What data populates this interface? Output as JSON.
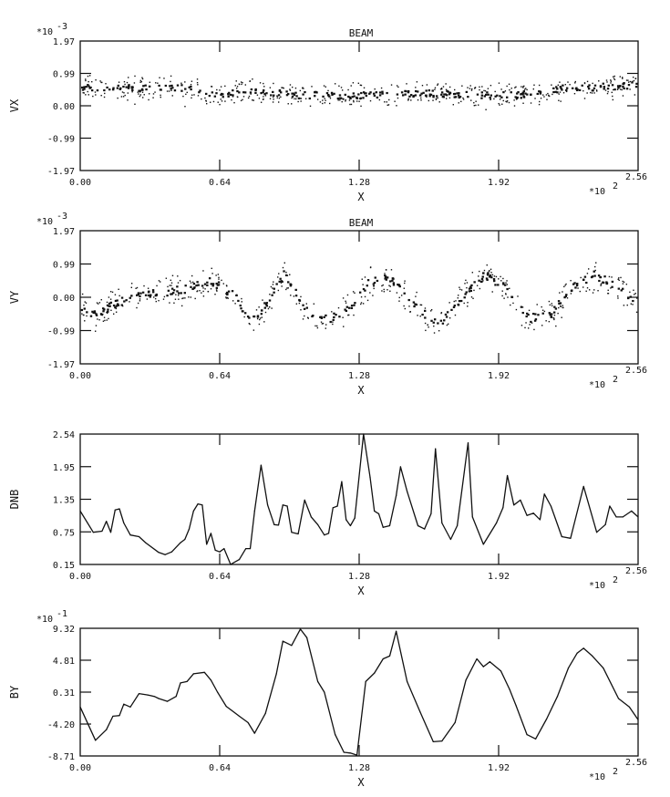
{
  "chart_data": [
    {
      "type": "scatter",
      "title": "BEAM",
      "xlabel": "X",
      "ylabel": "VX",
      "y_scale_label": "*10",
      "y_scale_exp": "-3",
      "x_scale_label": "*10",
      "x_scale_exp": "2",
      "xlim": [
        0,
        2.56
      ],
      "ylim": [
        -1.97,
        1.97
      ],
      "xticks": [
        "0.00",
        "0.64",
        "1.28",
        "1.92",
        "2.56"
      ],
      "yticks": [
        "1.97",
        "0.99",
        "0.00",
        "-0.99",
        "-1.97"
      ],
      "trend": {
        "x": [
          0,
          0.3,
          0.45,
          0.6,
          0.8,
          1.0,
          1.3,
          1.6,
          1.8,
          2.0,
          2.2,
          2.56
        ],
        "y": [
          0.6,
          0.55,
          0.6,
          0.35,
          0.5,
          0.35,
          0.35,
          0.4,
          0.35,
          0.35,
          0.55,
          0.65
        ]
      },
      "spread": 0.25,
      "n_points": 700
    },
    {
      "type": "scatter",
      "title": "BEAM",
      "xlabel": "X",
      "ylabel": "VY",
      "y_scale_label": "*10",
      "y_scale_exp": "-3",
      "x_scale_label": "*10",
      "x_scale_exp": "2",
      "xlim": [
        0,
        2.56
      ],
      "ylim": [
        -1.97,
        1.97
      ],
      "xticks": [
        "0.00",
        "0.64",
        "1.28",
        "1.92",
        "2.56"
      ],
      "yticks": [
        "1.97",
        "0.99",
        "0.00",
        "-0.99",
        "-1.97"
      ],
      "trend": {
        "x": [
          0,
          0.05,
          0.15,
          0.25,
          0.4,
          0.5,
          0.6,
          0.7,
          0.78,
          0.85,
          0.93,
          0.98,
          1.05,
          1.15,
          1.25,
          1.32,
          1.42,
          1.5,
          1.58,
          1.65,
          1.75,
          1.85,
          1.95,
          2.05,
          2.15,
          2.25,
          2.35,
          2.45,
          2.56
        ],
        "y": [
          -0.3,
          -0.5,
          -0.2,
          0.1,
          0.2,
          0.3,
          0.5,
          0.1,
          -0.7,
          -0.2,
          0.7,
          0.2,
          -0.5,
          -0.6,
          -0.2,
          0.5,
          0.6,
          0.0,
          -0.5,
          -0.7,
          0.0,
          0.7,
          0.3,
          -0.6,
          -0.5,
          0.3,
          0.7,
          0.4,
          -0.2
        ]
      },
      "spread": 0.3,
      "n_points": 700
    },
    {
      "type": "line",
      "title": "",
      "xlabel": "X",
      "ylabel": "DNB",
      "x_scale_label": "*10",
      "x_scale_exp": "2",
      "xlim": [
        0,
        2.56
      ],
      "ylim": [
        0.15,
        2.54
      ],
      "xticks": [
        "0.00",
        "0.64",
        "1.28",
        "1.92",
        "2.56"
      ],
      "yticks": [
        "2.54",
        "1.95",
        "1.35",
        "0.75",
        "0.15"
      ],
      "x": [
        0,
        0.06,
        0.1,
        0.12,
        0.14,
        0.16,
        0.18,
        0.2,
        0.23,
        0.27,
        0.3,
        0.36,
        0.39,
        0.42,
        0.46,
        0.48,
        0.5,
        0.52,
        0.54,
        0.56,
        0.58,
        0.6,
        0.62,
        0.64,
        0.66,
        0.69,
        0.73,
        0.76,
        0.78,
        0.8,
        0.83,
        0.86,
        0.89,
        0.91,
        0.93,
        0.95,
        0.97,
        1.0,
        1.03,
        1.06,
        1.09,
        1.12,
        1.14,
        1.16,
        1.18,
        1.2,
        1.22,
        1.24,
        1.26,
        1.3,
        1.33,
        1.35,
        1.37,
        1.39,
        1.42,
        1.45,
        1.47,
        1.5,
        1.55,
        1.58,
        1.61,
        1.63,
        1.66,
        1.7,
        1.73,
        1.78,
        1.8,
        1.85,
        1.91,
        1.94,
        1.96,
        1.99,
        2.02,
        2.05,
        2.08,
        2.11,
        2.13,
        2.16,
        2.21,
        2.25,
        2.31,
        2.37,
        2.41,
        2.43,
        2.46,
        2.49,
        2.53,
        2.56
      ],
      "y": [
        1.13,
        0.74,
        0.76,
        0.94,
        0.74,
        1.15,
        1.17,
        0.91,
        0.69,
        0.66,
        0.55,
        0.37,
        0.33,
        0.38,
        0.55,
        0.61,
        0.8,
        1.13,
        1.26,
        1.24,
        0.52,
        0.72,
        0.41,
        0.38,
        0.44,
        0.15,
        0.24,
        0.44,
        0.44,
        1.13,
        1.97,
        1.24,
        0.88,
        0.87,
        1.24,
        1.22,
        0.74,
        0.71,
        1.33,
        1.02,
        0.88,
        0.69,
        0.72,
        1.19,
        1.22,
        1.67,
        0.97,
        0.86,
        1.0,
        2.54,
        1.75,
        1.13,
        1.08,
        0.83,
        0.86,
        1.41,
        1.94,
        1.49,
        0.86,
        0.8,
        1.08,
        2.27,
        0.91,
        0.61,
        0.86,
        2.38,
        1.02,
        0.52,
        0.91,
        1.19,
        1.78,
        1.24,
        1.33,
        1.05,
        1.09,
        0.97,
        1.44,
        1.22,
        0.66,
        0.63,
        1.58,
        0.74,
        0.88,
        1.22,
        1.02,
        1.02,
        1.13,
        1.02
      ]
    },
    {
      "type": "line",
      "title": "",
      "xlabel": "X",
      "ylabel": "BY",
      "y_scale_label": "*10",
      "y_scale_exp": "-1",
      "x_scale_label": "*10",
      "x_scale_exp": "2",
      "xlim": [
        0,
        2.56
      ],
      "ylim": [
        -8.71,
        9.32
      ],
      "xticks": [
        "0.00",
        "0.64",
        "1.28",
        "1.92",
        "2.56"
      ],
      "yticks": [
        "9.32",
        "4.81",
        "0.31",
        "-4.20",
        "-8.71"
      ],
      "x": [
        0,
        0.07,
        0.12,
        0.15,
        0.18,
        0.2,
        0.23,
        0.27,
        0.31,
        0.34,
        0.36,
        0.4,
        0.44,
        0.46,
        0.49,
        0.52,
        0.57,
        0.6,
        0.63,
        0.67,
        0.73,
        0.77,
        0.8,
        0.85,
        0.9,
        0.93,
        0.97,
        1.01,
        1.04,
        1.09,
        1.12,
        1.17,
        1.21,
        1.24,
        1.27,
        1.31,
        1.35,
        1.39,
        1.42,
        1.45,
        1.5,
        1.56,
        1.62,
        1.66,
        1.72,
        1.77,
        1.82,
        1.85,
        1.88,
        1.93,
        1.97,
        2.0,
        2.05,
        2.09,
        2.14,
        2.19,
        2.24,
        2.28,
        2.31,
        2.35,
        2.4,
        2.47,
        2.52,
        2.56
      ],
      "y": [
        -1.8,
        -6.5,
        -5.0,
        -3.1,
        -3.0,
        -1.4,
        -1.8,
        0.1,
        -0.1,
        -0.3,
        -0.6,
        -1.0,
        -0.3,
        1.6,
        1.8,
        2.9,
        3.1,
        2.0,
        0.3,
        -1.7,
        -3.1,
        -4.0,
        -5.5,
        -2.7,
        2.9,
        7.5,
        6.9,
        9.2,
        8.0,
        1.8,
        0.3,
        -5.7,
        -8.2,
        -8.3,
        -8.6,
        1.8,
        3.0,
        5.0,
        5.4,
        8.9,
        1.8,
        -2.5,
        -6.7,
        -6.6,
        -4.0,
        2.0,
        5.0,
        3.9,
        4.6,
        3.3,
        0.7,
        -1.6,
        -5.7,
        -6.3,
        -3.5,
        -0.3,
        3.7,
        5.8,
        6.5,
        5.4,
        3.7,
        -0.6,
        -1.8,
        -3.6
      ]
    }
  ]
}
